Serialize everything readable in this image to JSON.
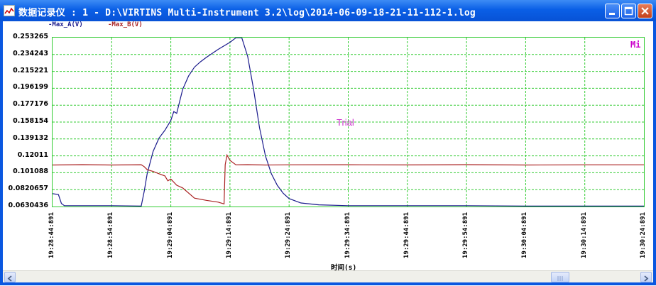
{
  "window": {
    "title": "数据记录仪 : 1 - D:\\VIRTINS Multi-Instrument 3.2\\log\\2014-06-09-18-21-11-112-1.log"
  },
  "legend": {
    "series_a": "Max_A(V)",
    "series_b": "Max_B(V)"
  },
  "overlay": {
    "mode_label": "Mi",
    "watermark": "Trial"
  },
  "chart_data": {
    "type": "line",
    "xlabel": "时间(s)",
    "ylabel": "",
    "y_ticks": [
      "0.253265",
      "0.234243",
      "0.215221",
      "0.196199",
      "0.177176",
      "0.158154",
      "0.139132",
      "0.12011",
      "0.101088",
      "0.0820657",
      "0.0630436"
    ],
    "ylim": [
      0.0630436,
      0.253265
    ],
    "x_ticks": [
      "19:28:44:891",
      "19:28:54:891",
      "19:29:04:891",
      "19:29:14:891",
      "19:29:24:891",
      "19:29:34:891",
      "19:29:44:891",
      "19:29:54:891",
      "19:30:04:891",
      "19:30:14:891",
      "19:30:24:891"
    ],
    "x_range_seconds": [
      0,
      100
    ],
    "grid": true,
    "series": [
      {
        "name": "Max_A(V)",
        "color": "#1a1a8c",
        "x": [
          0,
          1,
          1.5,
          2,
          5,
          10,
          15,
          15.5,
          16,
          17,
          18,
          19,
          20,
          20.5,
          21,
          22,
          23,
          24,
          25,
          26,
          28,
          30,
          31,
          32,
          33,
          34,
          35,
          36,
          37,
          38,
          39,
          40,
          42,
          45,
          50,
          60,
          70,
          80,
          90,
          100
        ],
        "y": [
          0.0775,
          0.0765,
          0.0665,
          0.064,
          0.064,
          0.064,
          0.0635,
          0.08,
          0.1,
          0.125,
          0.14,
          0.149,
          0.16,
          0.17,
          0.168,
          0.195,
          0.21,
          0.22,
          0.226,
          0.231,
          0.24,
          0.248,
          0.253,
          0.253,
          0.232,
          0.195,
          0.152,
          0.12,
          0.1,
          0.087,
          0.078,
          0.072,
          0.067,
          0.065,
          0.064,
          0.064,
          0.064,
          0.0635,
          0.0635,
          0.0635
        ]
      },
      {
        "name": "Max_B(V)",
        "color": "#aa2222",
        "x": [
          0,
          5,
          10,
          15,
          15.5,
          16,
          17,
          18,
          19,
          19.5,
          20,
          21,
          22,
          24,
          26,
          28,
          29,
          29.2,
          29.5,
          30,
          31,
          33,
          36,
          40,
          50,
          60,
          70,
          80,
          90,
          100
        ],
        "y": [
          0.1098,
          0.1102,
          0.1098,
          0.1101,
          0.108,
          0.1045,
          0.1025,
          0.1,
          0.0975,
          0.092,
          0.094,
          0.087,
          0.084,
          0.0725,
          0.07,
          0.068,
          0.066,
          0.11,
          0.121,
          0.115,
          0.11,
          0.1102,
          0.1098,
          0.11,
          0.1101,
          0.1099,
          0.1102,
          0.1098,
          0.11,
          0.11
        ]
      }
    ]
  }
}
